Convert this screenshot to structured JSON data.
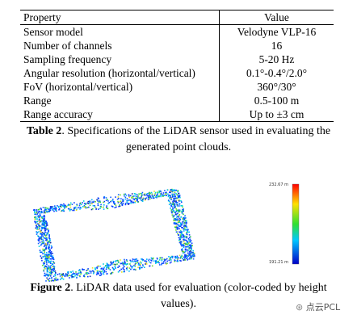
{
  "table": {
    "headers": [
      "Property",
      "Value"
    ],
    "rows": [
      [
        "Sensor model",
        "Velodyne VLP-16"
      ],
      [
        "Number of channels",
        "16"
      ],
      [
        "Sampling frequency",
        "5-20 Hz"
      ],
      [
        "Angular resolution (horizontal/vertical)",
        "0.1°-0.4°/2.0°"
      ],
      [
        "FoV (horizontal/vertical)",
        "360°/30°"
      ],
      [
        "Range",
        "0.5-100 m"
      ],
      [
        "Range accuracy",
        "Up to ±3 cm"
      ]
    ]
  },
  "table_caption": {
    "label": "Table 2",
    "text": ". Specifications of the LiDAR sensor used in evaluating the generated point clouds."
  },
  "figure": {
    "colorbar_max": "232.67 m",
    "colorbar_min": "191.21 m"
  },
  "figure_caption": {
    "label": "Figure 2",
    "text": ". LiDAR data used for evaluation (color-coded by height values)."
  },
  "watermark": "点云PCL"
}
